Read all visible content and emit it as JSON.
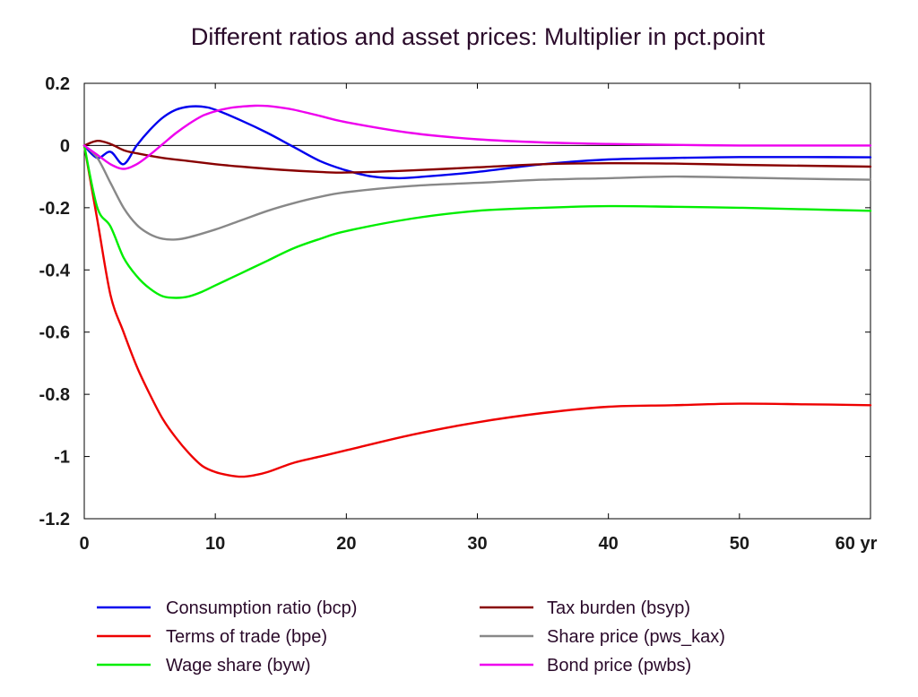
{
  "chart_data": {
    "type": "line",
    "title": "Different ratios and asset prices: Multiplier in pct.point",
    "xlabel": "",
    "ylabel": "",
    "x_unit": "yr",
    "xlim": [
      0,
      60
    ],
    "ylim": [
      -1.2,
      0.2
    ],
    "x_ticks": [
      0,
      10,
      20,
      30,
      40,
      50,
      60
    ],
    "x_tick_labels": [
      "0",
      "10",
      "20",
      "30",
      "40",
      "50",
      "60 yr"
    ],
    "y_ticks": [
      0.2,
      0,
      -0.2,
      -0.4,
      -0.6,
      -0.8,
      -1,
      -1.2
    ],
    "y_tick_labels": [
      "0.2",
      "0",
      "-0.2",
      "-0.4",
      "-0.6",
      "-0.8",
      "-1",
      "-1.2"
    ],
    "grid": false,
    "zero_line": true,
    "legend_position": "bottom",
    "series": [
      {
        "name": "Consumption ratio (bcp)",
        "color": "#0000ee",
        "x": [
          0,
          1,
          2,
          3,
          4,
          5,
          6,
          7,
          8,
          9,
          10,
          12,
          14,
          16,
          18,
          20,
          22,
          24,
          26,
          30,
          35,
          40,
          45,
          50,
          55,
          60
        ],
        "y": [
          0,
          -0.04,
          -0.02,
          -0.06,
          0,
          0.05,
          0.09,
          0.115,
          0.125,
          0.125,
          0.115,
          0.08,
          0.04,
          -0.005,
          -0.05,
          -0.08,
          -0.1,
          -0.105,
          -0.1,
          -0.085,
          -0.06,
          -0.045,
          -0.04,
          -0.037,
          -0.037,
          -0.038
        ]
      },
      {
        "name": "Terms of trade (bpe)",
        "color": "#ee0000",
        "x": [
          0,
          1,
          2,
          3,
          4,
          5,
          6,
          7,
          8,
          9,
          10,
          11,
          12,
          13,
          14,
          16,
          18,
          20,
          25,
          30,
          35,
          40,
          45,
          50,
          55,
          60
        ],
        "y": [
          0,
          -0.24,
          -0.48,
          -0.6,
          -0.71,
          -0.8,
          -0.88,
          -0.94,
          -0.99,
          -1.03,
          -1.05,
          -1.06,
          -1.065,
          -1.06,
          -1.05,
          -1.02,
          -1.0,
          -0.98,
          -0.93,
          -0.89,
          -0.86,
          -0.84,
          -0.835,
          -0.83,
          -0.832,
          -0.835
        ]
      },
      {
        "name": "Wage share (byw)",
        "color": "#00ee00",
        "x": [
          0,
          1,
          2,
          3,
          4,
          5,
          6,
          7,
          8,
          9,
          10,
          12,
          14,
          16,
          18,
          20,
          25,
          30,
          35,
          40,
          45,
          50,
          55,
          60
        ],
        "y": [
          0,
          -0.2,
          -0.26,
          -0.36,
          -0.42,
          -0.46,
          -0.485,
          -0.49,
          -0.485,
          -0.47,
          -0.45,
          -0.41,
          -0.37,
          -0.33,
          -0.3,
          -0.275,
          -0.235,
          -0.21,
          -0.2,
          -0.195,
          -0.197,
          -0.2,
          -0.205,
          -0.21
        ]
      },
      {
        "name": "Tax burden (bsyp)",
        "color": "#880000",
        "x": [
          0,
          1,
          2,
          3,
          4,
          6,
          8,
          10,
          12,
          15,
          18,
          20,
          25,
          30,
          35,
          40,
          45,
          50,
          55,
          60
        ],
        "y": [
          0,
          0.015,
          0.005,
          -0.015,
          -0.025,
          -0.04,
          -0.05,
          -0.06,
          -0.068,
          -0.078,
          -0.085,
          -0.087,
          -0.08,
          -0.07,
          -0.06,
          -0.057,
          -0.058,
          -0.062,
          -0.065,
          -0.068
        ]
      },
      {
        "name": "Share price (pws_kax)",
        "color": "#888888",
        "x": [
          0,
          1,
          2,
          3,
          4,
          5,
          6,
          7,
          8,
          10,
          12,
          14,
          16,
          18,
          20,
          25,
          30,
          35,
          40,
          45,
          50,
          55,
          60
        ],
        "y": [
          0,
          -0.04,
          -0.12,
          -0.2,
          -0.255,
          -0.285,
          -0.3,
          -0.302,
          -0.295,
          -0.27,
          -0.24,
          -0.21,
          -0.185,
          -0.165,
          -0.15,
          -0.13,
          -0.12,
          -0.11,
          -0.105,
          -0.1,
          -0.103,
          -0.107,
          -0.11
        ]
      },
      {
        "name": "Bond price (pwbs)",
        "color": "#ee00ee",
        "x": [
          0,
          1,
          2,
          3,
          4,
          5,
          6,
          7,
          8,
          9,
          10,
          11,
          12,
          13,
          14,
          15,
          16,
          18,
          20,
          25,
          30,
          35,
          40,
          45,
          50,
          55,
          60
        ],
        "y": [
          0,
          -0.03,
          -0.06,
          -0.075,
          -0.06,
          -0.03,
          0.005,
          0.04,
          0.07,
          0.095,
          0.11,
          0.12,
          0.125,
          0.128,
          0.127,
          0.122,
          0.115,
          0.095,
          0.075,
          0.04,
          0.02,
          0.01,
          0.005,
          0.002,
          0,
          0,
          0
        ]
      }
    ]
  }
}
